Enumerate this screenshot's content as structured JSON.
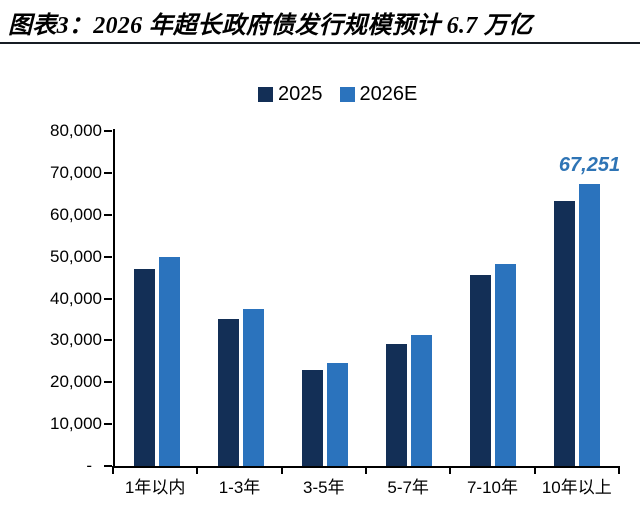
{
  "header": {
    "title": "图表3：2026 年超长政府债发行规模预计 6.7 万亿"
  },
  "chart_data": {
    "type": "bar",
    "title": "图表3：2026 年超长政府债发行规模预计 6.7 万亿",
    "categories": [
      "1年以内",
      "1-3年",
      "3-5年",
      "5-7年",
      "7-10年",
      "10年以上"
    ],
    "series": [
      {
        "name": "2025",
        "color": "#132f56",
        "values": [
          47000,
          35200,
          23000,
          29200,
          45500,
          63300
        ]
      },
      {
        "name": "2026E",
        "color": "#2b73bd",
        "values": [
          50000,
          37500,
          24500,
          31200,
          48300,
          67251
        ]
      }
    ],
    "xlabel": "",
    "ylabel": "",
    "ylim": [
      0,
      80000
    ],
    "yticks": [
      0,
      10000,
      20000,
      30000,
      40000,
      50000,
      60000,
      70000,
      80000
    ],
    "ytick_labels": [
      "-",
      "10,000",
      "20,000",
      "30,000",
      "40,000",
      "50,000",
      "60,000",
      "70,000",
      "80,000"
    ],
    "grid": false,
    "legend_position": "top-center",
    "axis_color": "#000000",
    "annotation": {
      "text": "67,251",
      "series_index": 1,
      "category_index": 5,
      "color": "#2e74b5"
    }
  }
}
